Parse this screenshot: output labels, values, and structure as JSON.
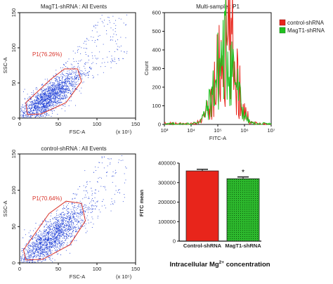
{
  "colors": {
    "dots": "#1f3fd6",
    "gate": "#d9342b",
    "control": "#e8251b",
    "magt1": "#1fc11f",
    "axis": "#111111"
  },
  "chart_data": [
    {
      "type": "scatter",
      "title": "MagT1-shRNA : All Events",
      "xlabel": "FSC-A",
      "ylabel": "SSC-A",
      "axis_exponent": "(x 10⁵)",
      "xlim": [
        0,
        150
      ],
      "ylim": [
        0,
        150
      ],
      "xticks": [
        "0",
        "50",
        "100",
        "150"
      ],
      "yticks": [
        "0",
        "50",
        "100",
        "150"
      ],
      "gate": {
        "name": "P1",
        "percent_label": "P1(76.26%)",
        "polygon": [
          [
            8,
            22
          ],
          [
            40,
            55
          ],
          [
            58,
            70
          ],
          [
            75,
            70
          ],
          [
            80,
            52
          ],
          [
            60,
            22
          ],
          [
            28,
            6
          ],
          [
            10,
            5
          ]
        ]
      },
      "points_description_only": "dense event cloud",
      "cloud": {
        "center": [
          34,
          26
        ],
        "spread": [
          22,
          20
        ],
        "slope": 0.9
      }
    },
    {
      "type": "line",
      "title": "Multi-sample : P1",
      "xlabel": "FITC-A",
      "ylabel": "Count",
      "xscale": "log",
      "xlim": [
        1000,
        10000000
      ],
      "ylim": [
        0,
        600
      ],
      "xticks": [
        "10³",
        "10⁴",
        "10⁵",
        "10⁶",
        "10⁷"
      ],
      "yticks": [
        "0",
        "100",
        "200",
        "300",
        "400",
        "500",
        "600"
      ],
      "legend": {
        "placement": "right",
        "entries": [
          "control-shRNA",
          "MagT1-shRNA"
        ]
      },
      "series": [
        {
          "name": "control-shRNA",
          "peak_x": 250000,
          "peak_y": 420
        },
        {
          "name": "MagT1-shRNA",
          "peak_x": 220000,
          "peak_y": 395
        }
      ]
    },
    {
      "type": "scatter",
      "title": "control-shRNA : All Events",
      "xlabel": "FSC-A",
      "ylabel": "SSC-A",
      "axis_exponent": "(x 10⁵)",
      "xlim": [
        0,
        150
      ],
      "ylim": [
        0,
        150
      ],
      "xticks": [
        "0",
        "50",
        "100",
        "150"
      ],
      "yticks": [
        "0",
        "50",
        "100",
        "150"
      ],
      "gate": {
        "name": "P1",
        "percent_label": "P1(70.64%)",
        "polygon": [
          [
            5,
            18
          ],
          [
            38,
            68
          ],
          [
            60,
            85
          ],
          [
            80,
            82
          ],
          [
            85,
            58
          ],
          [
            65,
            25
          ],
          [
            30,
            5
          ],
          [
            8,
            4
          ]
        ]
      },
      "cloud": {
        "center": [
          38,
          32
        ],
        "spread": [
          24,
          24
        ],
        "slope": 1.0
      }
    },
    {
      "type": "bar",
      "categories": [
        "Control-shRNA",
        "MagT1-shRNA"
      ],
      "values": [
        360000,
        320000
      ],
      "errors": [
        8000,
        9000
      ],
      "ylabel": "FITC mean",
      "ylim": [
        0,
        400000
      ],
      "yticks": [
        "0",
        "100000",
        "200000",
        "300000",
        "400000"
      ],
      "significance": [
        "",
        "*"
      ],
      "bar_colors": [
        "#e8251b",
        "#1fa31f"
      ],
      "xlabel_prefix": "Intracellular Mg",
      "xlabel_sup": "2+",
      "xlabel_suffix": " concentration"
    }
  ]
}
